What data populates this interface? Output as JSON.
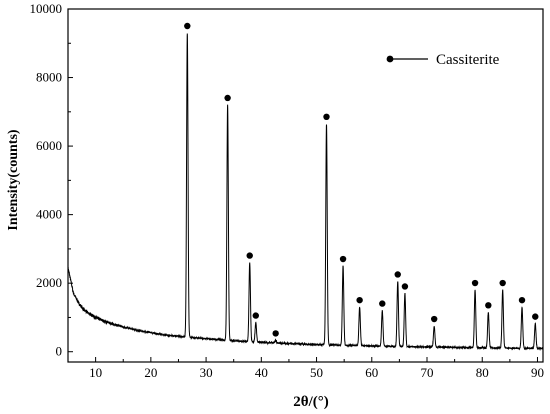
{
  "chart_data": {
    "type": "line",
    "xlabel": "2θ/(°)",
    "ylabel": "Intensity(counts)",
    "xlim": [
      5,
      91
    ],
    "ylim": [
      -300,
      10000
    ],
    "x_ticks": [
      10,
      20,
      30,
      40,
      50,
      60,
      70,
      80,
      90
    ],
    "y_ticks": [
      0,
      2000,
      4000,
      6000,
      8000,
      10000
    ],
    "grid": false,
    "legend_position": "top-right",
    "legend": [
      {
        "label": "Cassiterite",
        "marker": "filled-circle"
      }
    ],
    "series": [
      {
        "name": "Cassiterite",
        "background": [
          [
            5,
            2450
          ],
          [
            6,
            1700
          ],
          [
            7,
            1400
          ],
          [
            8,
            1200
          ],
          [
            10,
            1000
          ],
          [
            12,
            860
          ],
          [
            15,
            720
          ],
          [
            18,
            610
          ],
          [
            20,
            560
          ],
          [
            22,
            500
          ],
          [
            25,
            450
          ],
          [
            30,
            380
          ],
          [
            35,
            320
          ],
          [
            40,
            270
          ],
          [
            45,
            240
          ],
          [
            50,
            210
          ],
          [
            55,
            190
          ],
          [
            60,
            170
          ],
          [
            65,
            150
          ],
          [
            70,
            140
          ],
          [
            75,
            125
          ],
          [
            80,
            115
          ],
          [
            85,
            105
          ],
          [
            90,
            95
          ],
          [
            91,
            90
          ]
        ],
        "peaks": [
          {
            "x": 26.6,
            "y": 9300
          },
          {
            "x": 33.9,
            "y": 7200
          },
          {
            "x": 37.9,
            "y": 2600
          },
          {
            "x": 39.0,
            "y": 850
          },
          {
            "x": 42.6,
            "y": 330
          },
          {
            "x": 51.8,
            "y": 6650
          },
          {
            "x": 54.8,
            "y": 2500
          },
          {
            "x": 57.8,
            "y": 1300
          },
          {
            "x": 61.9,
            "y": 1200
          },
          {
            "x": 64.7,
            "y": 2050
          },
          {
            "x": 66.0,
            "y": 1700
          },
          {
            "x": 71.3,
            "y": 750
          },
          {
            "x": 78.7,
            "y": 1800
          },
          {
            "x": 81.1,
            "y": 1150
          },
          {
            "x": 83.7,
            "y": 1800
          },
          {
            "x": 87.2,
            "y": 1300
          },
          {
            "x": 89.6,
            "y": 820
          }
        ],
        "marker_color": "#000000",
        "line_color": "#000000"
      }
    ]
  }
}
